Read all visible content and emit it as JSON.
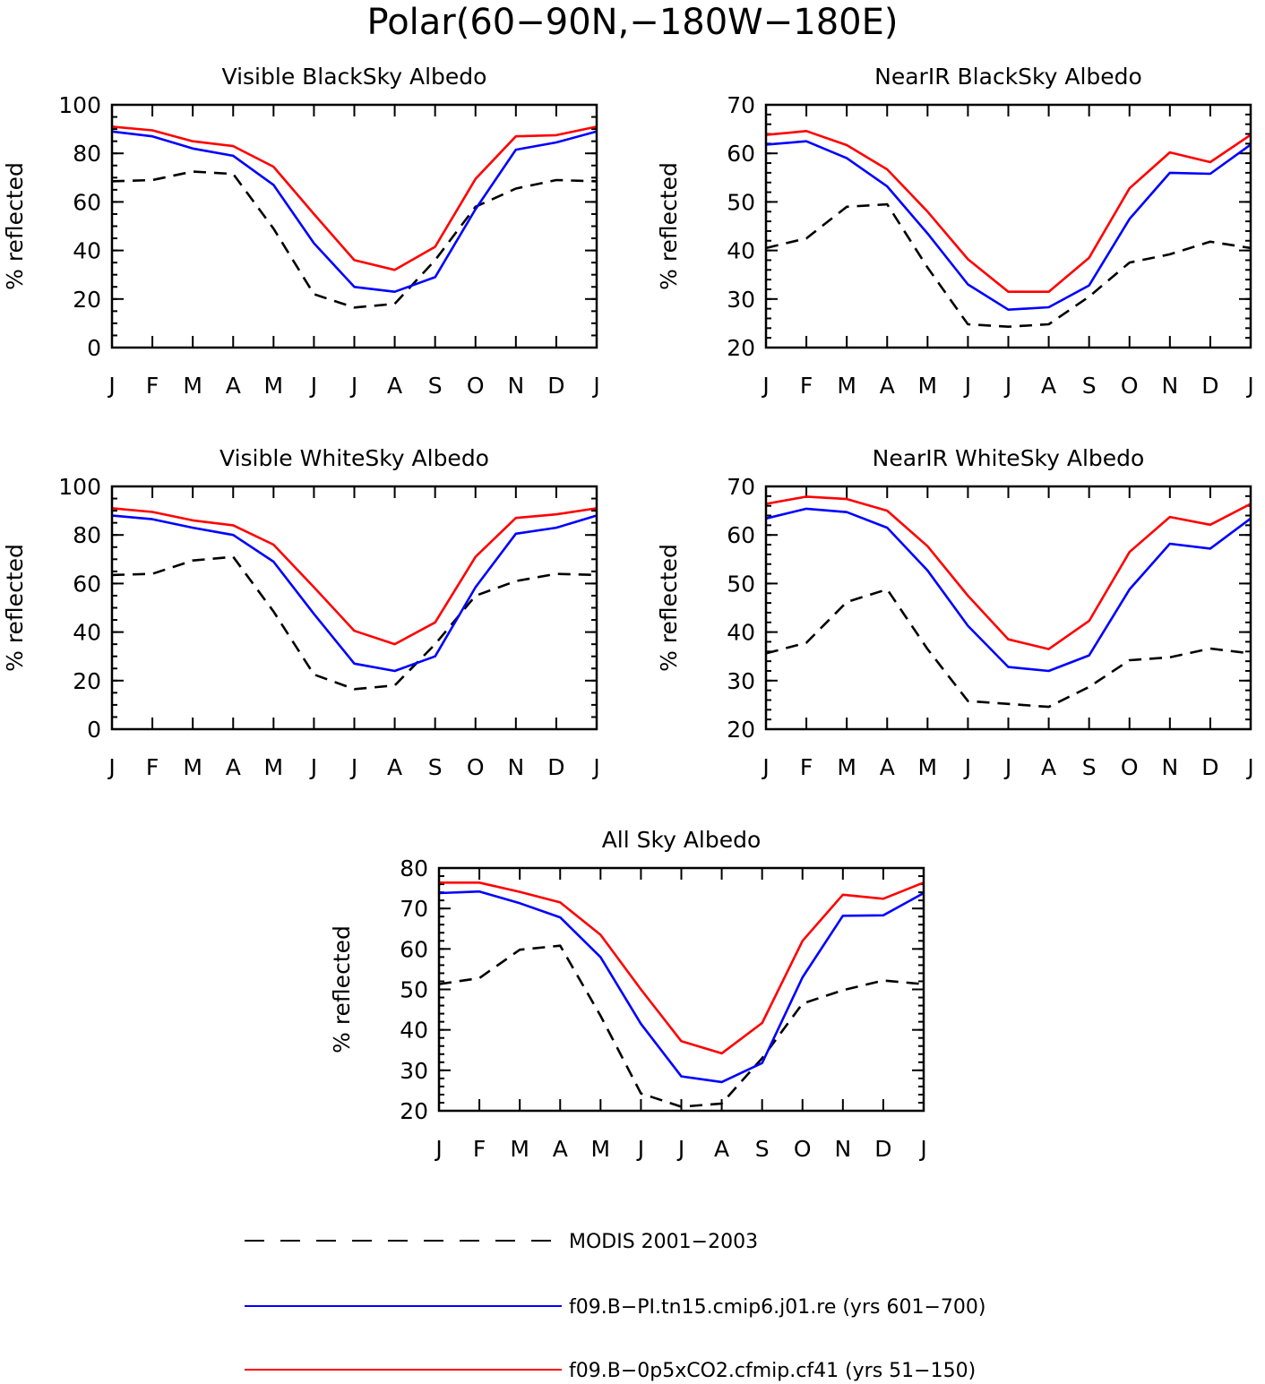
{
  "title": "Polar(60−90N,−180W−180E)",
  "months": [
    "J",
    "F",
    "M",
    "A",
    "M",
    "J",
    "J",
    "A",
    "S",
    "O",
    "N",
    "D",
    "J"
  ],
  "series_styles": [
    {
      "name": "MODIS 2001−2003",
      "color": "#000000",
      "dash": true
    },
    {
      "name": "f09.B−PI.tn15.cmip6.j01.re (yrs 601−700)",
      "color": "#0000ff",
      "dash": false
    },
    {
      "name": "f09.B−0p5xCO2.cfmip.cf41 (yrs 51−150)",
      "color": "#ff0000",
      "dash": false
    }
  ],
  "chart_data": [
    {
      "type": "line",
      "title": "Visible BlackSky Albedo",
      "ylabel": "% reflected",
      "ylim": [
        0,
        100
      ],
      "yticks": [
        0,
        20,
        40,
        60,
        80,
        100
      ],
      "yminor": 5,
      "categories": [
        "J",
        "F",
        "M",
        "A",
        "M",
        "J",
        "J",
        "A",
        "S",
        "O",
        "N",
        "D",
        "J"
      ],
      "series": [
        {
          "name": "MODIS 2001−2003",
          "values": [
            68.5,
            69,
            72.5,
            71.5,
            49,
            22,
            16.5,
            18,
            36,
            58,
            65.5,
            69,
            68.5
          ]
        },
        {
          "name": "f09.B−PI.tn15.cmip6.j01.re (yrs 601−700)",
          "values": [
            89,
            87,
            82,
            79,
            67,
            43,
            25,
            23,
            29,
            57,
            81.5,
            84.5,
            89
          ]
        },
        {
          "name": "f09.B−0p5xCO2.cfmip.cf41 (yrs 51−150)",
          "values": [
            91,
            89.5,
            85,
            83,
            74.5,
            55,
            36,
            32,
            41.5,
            69.5,
            87,
            87.5,
            91
          ]
        }
      ]
    },
    {
      "type": "line",
      "title": "NearIR BlackSky Albedo",
      "ylabel": "% reflected",
      "ylim": [
        20,
        70
      ],
      "yticks": [
        20,
        30,
        40,
        50,
        60,
        70
      ],
      "yminor": 2,
      "categories": [
        "J",
        "F",
        "M",
        "A",
        "M",
        "J",
        "J",
        "A",
        "S",
        "O",
        "N",
        "D",
        "J"
      ],
      "series": [
        {
          "name": "MODIS 2001−2003",
          "values": [
            40.5,
            42.5,
            49,
            49.5,
            36.5,
            24.8,
            24.3,
            24.8,
            30.5,
            37.5,
            39.2,
            41.8,
            40.5
          ]
        },
        {
          "name": "f09.B−PI.tn15.cmip6.j01.re (yrs 601−700)",
          "values": [
            61.8,
            62.5,
            59,
            53.2,
            43.5,
            33,
            27.8,
            28.3,
            32.8,
            46.5,
            56,
            55.8,
            61.8
          ]
        },
        {
          "name": "f09.B−0p5xCO2.cfmip.cf41 (yrs 51−150)",
          "values": [
            63.8,
            64.6,
            61.7,
            56.7,
            48,
            38.2,
            31.5,
            31.5,
            38.5,
            52.8,
            60.2,
            58.2,
            63.8
          ]
        }
      ]
    },
    {
      "type": "line",
      "title": "Visible WhiteSky Albedo",
      "ylabel": "% reflected",
      "ylim": [
        0,
        100
      ],
      "yticks": [
        0,
        20,
        40,
        60,
        80,
        100
      ],
      "yminor": 5,
      "categories": [
        "J",
        "F",
        "M",
        "A",
        "M",
        "J",
        "J",
        "A",
        "S",
        "O",
        "N",
        "D",
        "J"
      ],
      "series": [
        {
          "name": "MODIS 2001−2003",
          "values": [
            63.5,
            64,
            69.5,
            71,
            48.5,
            22.5,
            16.5,
            18,
            35,
            55,
            61,
            64,
            63.5
          ]
        },
        {
          "name": "f09.B−PI.tn15.cmip6.j01.re (yrs 601−700)",
          "values": [
            88,
            86.5,
            83,
            80,
            69,
            47.5,
            27,
            24,
            30,
            58.5,
            80.5,
            83,
            88
          ]
        },
        {
          "name": "f09.B−0p5xCO2.cfmip.cf41 (yrs 51−150)",
          "values": [
            91,
            89.5,
            86,
            84,
            76,
            58.5,
            40.5,
            35,
            44,
            71,
            87,
            88.5,
            91
          ]
        }
      ]
    },
    {
      "type": "line",
      "title": "NearIR WhiteSky Albedo",
      "ylabel": "% reflected",
      "ylim": [
        20,
        70
      ],
      "yticks": [
        20,
        30,
        40,
        50,
        60,
        70
      ],
      "yminor": 2,
      "categories": [
        "J",
        "F",
        "M",
        "A",
        "M",
        "J",
        "J",
        "A",
        "S",
        "O",
        "N",
        "D",
        "J"
      ],
      "series": [
        {
          "name": "MODIS 2001−2003",
          "values": [
            35.6,
            37.8,
            46.2,
            48.8,
            36.5,
            25.8,
            25.2,
            24.6,
            28.7,
            34.2,
            34.8,
            36.6,
            35.6
          ]
        },
        {
          "name": "f09.B−PI.tn15.cmip6.j01.re (yrs 601−700)",
          "values": [
            63.4,
            65.4,
            64.7,
            61.5,
            52.7,
            41.3,
            32.8,
            32,
            35.2,
            48.8,
            58.2,
            57.2,
            63.4
          ]
        },
        {
          "name": "f09.B−0p5xCO2.cfmip.cf41 (yrs 51−150)",
          "values": [
            66.4,
            67.9,
            67.4,
            65,
            57.7,
            47.5,
            38.5,
            36.5,
            42.3,
            56.5,
            63.7,
            62.1,
            66.4
          ]
        }
      ]
    },
    {
      "type": "line",
      "title": "All Sky Albedo",
      "ylabel": "% reflected",
      "ylim": [
        20,
        80
      ],
      "yticks": [
        20,
        30,
        40,
        50,
        60,
        70,
        80
      ],
      "yminor": 2,
      "categories": [
        "J",
        "F",
        "M",
        "A",
        "M",
        "J",
        "J",
        "A",
        "S",
        "O",
        "N",
        "D",
        "J"
      ],
      "series": [
        {
          "name": "MODIS 2001−2003",
          "values": [
            51.3,
            52.8,
            59.8,
            60.8,
            43.5,
            24.3,
            21,
            21.8,
            33,
            46.5,
            49.8,
            52.2,
            51.3
          ]
        },
        {
          "name": "f09.B−PI.tn15.cmip6.j01.re (yrs 601−700)",
          "values": [
            73.8,
            74.2,
            71.3,
            67.8,
            58,
            41.5,
            28.5,
            27.1,
            31.8,
            53,
            68.2,
            68.3,
            73.8
          ]
        },
        {
          "name": "f09.B−0p5xCO2.cfmip.cf41 (yrs 51−150)",
          "values": [
            76.4,
            76.4,
            74.1,
            71.5,
            63.5,
            50,
            37.2,
            34.2,
            41.7,
            62,
            73.4,
            72.4,
            76.4
          ]
        }
      ]
    }
  ]
}
